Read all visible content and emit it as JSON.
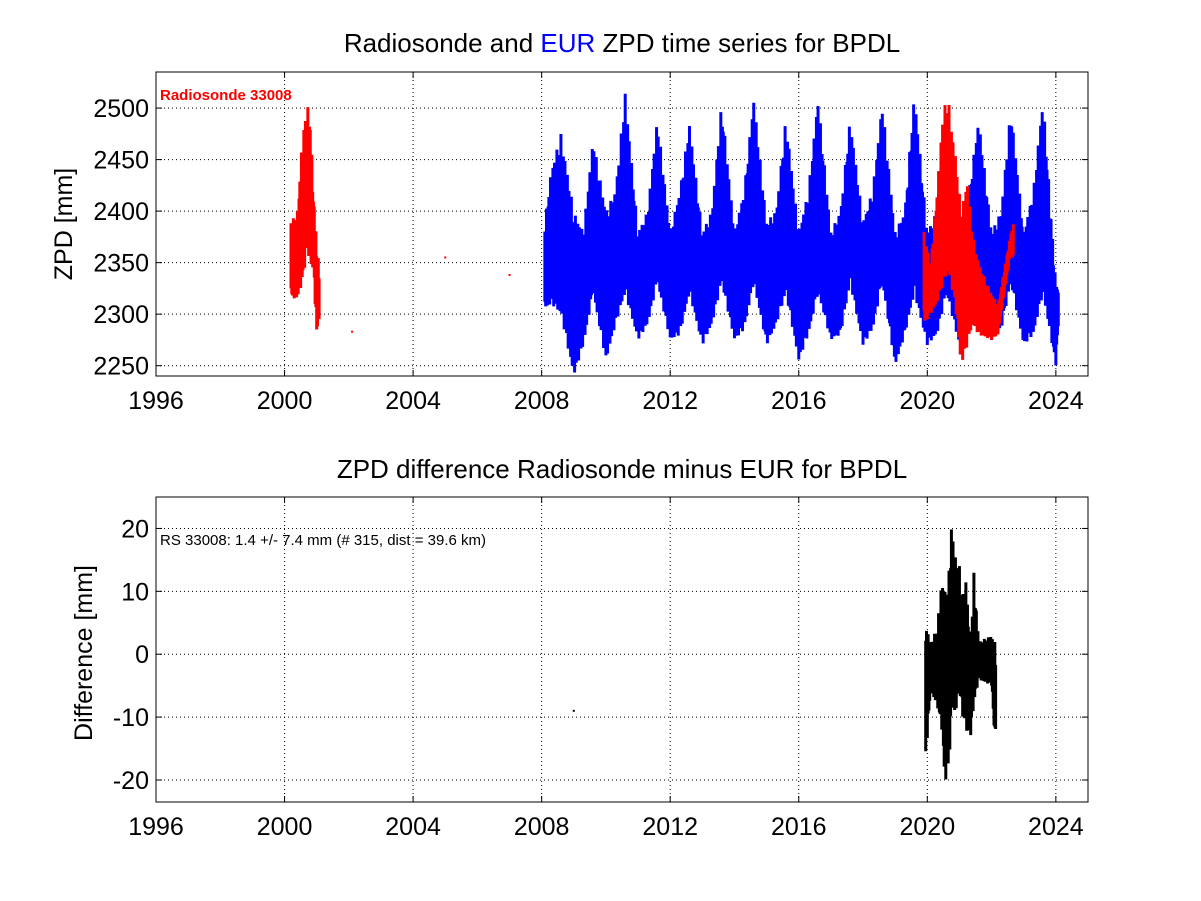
{
  "chart_data": [
    {
      "type": "line",
      "title_parts": [
        {
          "text": "Radiosonde and ",
          "color": "#000000"
        },
        {
          "text": "EUR",
          "color": "#0000ff"
        },
        {
          "text": " ZPD time series for BPDL",
          "color": "#000000"
        }
      ],
      "xlabel": "",
      "ylabel": "ZPD [mm]",
      "xlim": [
        1996,
        2025
      ],
      "ylim": [
        2240,
        2535
      ],
      "xticks": [
        1996,
        2000,
        2004,
        2008,
        2012,
        2016,
        2020,
        2024
      ],
      "yticks": [
        2250,
        2300,
        2350,
        2400,
        2450,
        2500
      ],
      "grid": true,
      "annotation": {
        "text": "Radiosonde 33008",
        "color": "#ff0000"
      },
      "series": [
        {
          "color": "#0000ff",
          "style": "dense",
          "envelope": [
            [
              2008.1,
              2305,
              2390
            ],
            [
              2008.3,
              2310,
              2440
            ],
            [
              2008.6,
              2300,
              2475
            ],
            [
              2009.0,
              2240,
              2400
            ],
            [
              2009.3,
              2270,
              2380
            ],
            [
              2009.6,
              2320,
              2470
            ],
            [
              2010.0,
              2255,
              2400
            ],
            [
              2010.3,
              2290,
              2420
            ],
            [
              2010.6,
              2320,
              2515
            ],
            [
              2011.0,
              2275,
              2380
            ],
            [
              2011.3,
              2290,
              2400
            ],
            [
              2011.6,
              2330,
              2490
            ],
            [
              2012.0,
              2275,
              2380
            ],
            [
              2012.3,
              2280,
              2420
            ],
            [
              2012.6,
              2320,
              2485
            ],
            [
              2013.0,
              2270,
              2380
            ],
            [
              2013.3,
              2290,
              2400
            ],
            [
              2013.6,
              2330,
              2505
            ],
            [
              2014.0,
              2275,
              2380
            ],
            [
              2014.3,
              2285,
              2420
            ],
            [
              2014.6,
              2330,
              2510
            ],
            [
              2015.0,
              2270,
              2390
            ],
            [
              2015.3,
              2290,
              2400
            ],
            [
              2015.6,
              2320,
              2490
            ],
            [
              2016.0,
              2255,
              2380
            ],
            [
              2016.3,
              2280,
              2420
            ],
            [
              2016.6,
              2320,
              2510
            ],
            [
              2017.0,
              2275,
              2380
            ],
            [
              2017.3,
              2280,
              2400
            ],
            [
              2017.6,
              2330,
              2490
            ],
            [
              2018.0,
              2270,
              2390
            ],
            [
              2018.3,
              2285,
              2420
            ],
            [
              2018.6,
              2330,
              2505
            ],
            [
              2019.0,
              2250,
              2380
            ],
            [
              2019.3,
              2280,
              2400
            ],
            [
              2019.6,
              2320,
              2515
            ],
            [
              2020.0,
              2270,
              2380
            ],
            [
              2020.3,
              2280,
              2400
            ],
            [
              2020.6,
              2320,
              2510
            ],
            [
              2021.0,
              2270,
              2380
            ],
            [
              2021.3,
              2285,
              2420
            ],
            [
              2021.6,
              2330,
              2490
            ],
            [
              2022.0,
              2275,
              2380
            ],
            [
              2022.3,
              2285,
              2400
            ],
            [
              2022.6,
              2330,
              2500
            ],
            [
              2023.0,
              2270,
              2380
            ],
            [
              2023.3,
              2280,
              2420
            ],
            [
              2023.6,
              2320,
              2510
            ],
            [
              2024.0,
              2250,
              2330
            ],
            [
              2024.1,
              2300,
              2330
            ]
          ]
        },
        {
          "color": "#ff0000",
          "style": "dense",
          "envelope": [
            [
              2000.2,
              2315,
              2390
            ],
            [
              2000.4,
              2315,
              2400
            ],
            [
              2000.55,
              2330,
              2470
            ],
            [
              2000.7,
              2360,
              2505
            ],
            [
              2000.8,
              2350,
              2490
            ],
            [
              2000.9,
              2340,
              2420
            ],
            [
              2001.0,
              2280,
              2370
            ],
            [
              2001.1,
              2300,
              2340
            ]
          ]
        },
        {
          "color": "#ff0000",
          "style": "dense",
          "envelope": [
            [
              2019.9,
              2290,
              2380
            ],
            [
              2020.1,
              2300,
              2350
            ],
            [
              2020.3,
              2310,
              2420
            ],
            [
              2020.5,
              2330,
              2500
            ],
            [
              2020.65,
              2340,
              2510
            ],
            [
              2020.8,
              2320,
              2470
            ],
            [
              2020.9,
              2300,
              2450
            ],
            [
              2021.05,
              2250,
              2400
            ],
            [
              2021.25,
              2270,
              2430
            ],
            [
              2021.4,
              2290,
              2380
            ],
            [
              2021.6,
              2280,
              2350
            ],
            [
              2022.0,
              2275,
              2320
            ],
            [
              2022.2,
              2280,
              2310
            ],
            [
              2022.6,
              2360,
              2380
            ],
            [
              2022.7,
              2350,
              2390
            ]
          ]
        },
        {
          "color": "#ff0000",
          "style": "points",
          "points": [
            [
              2002.1,
              2283
            ],
            [
              2005.0,
              2355
            ],
            [
              2007.0,
              2338
            ]
          ]
        }
      ]
    },
    {
      "type": "line",
      "title_parts": [
        {
          "text": "ZPD difference Radiosonde minus EUR for BPDL",
          "color": "#000000"
        }
      ],
      "xlabel": "",
      "ylabel": "Difference [mm]",
      "xlim": [
        1996,
        2025
      ],
      "ylim": [
        -23.5,
        25
      ],
      "xticks": [
        1996,
        2000,
        2004,
        2008,
        2012,
        2016,
        2020,
        2024
      ],
      "yticks": [
        -20,
        -10,
        0,
        10,
        20
      ],
      "grid": true,
      "annotation": {
        "text": "RS 33008: 1.4 +/- 7.4 mm (# 315, dist =  39.6 km)",
        "color": "#000000"
      },
      "series": [
        {
          "color": "#000000",
          "style": "dense",
          "envelope": [
            [
              2019.95,
              -17,
              5
            ],
            [
              2020.1,
              -6,
              2
            ],
            [
              2020.3,
              -8,
              4
            ],
            [
              2020.45,
              -12,
              12
            ],
            [
              2020.55,
              -21,
              10
            ],
            [
              2020.7,
              -16,
              14
            ],
            [
              2020.75,
              -8,
              21
            ],
            [
              2020.85,
              -10,
              16
            ],
            [
              2021.0,
              -6,
              14
            ],
            [
              2021.1,
              -10,
              9
            ],
            [
              2021.2,
              -12,
              12
            ],
            [
              2021.35,
              -13,
              2
            ],
            [
              2021.45,
              -8,
              13
            ],
            [
              2021.6,
              -4,
              2
            ],
            [
              2022.0,
              -5,
              3
            ],
            [
              2022.1,
              -14,
              2
            ],
            [
              2022.15,
              -10,
              1
            ]
          ]
        },
        {
          "color": "#000000",
          "style": "points",
          "points": [
            [
              2009.0,
              -9
            ]
          ]
        }
      ]
    }
  ]
}
